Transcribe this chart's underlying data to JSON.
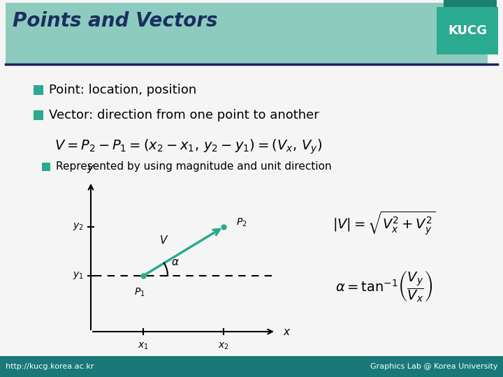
{
  "title": "Points and Vectors",
  "title_bg_color": "#8ECBBF",
  "title_text_color": "#1a3060",
  "kucg_back_color": "#1a8070",
  "kucg_front_color": "#2aaa90",
  "header_line_color": "#1a2060",
  "bg_color": "#f5f5f5",
  "footer_bg_color": "#1a7878",
  "footer_left": "http://kucg.korea.ac.kr",
  "footer_right": "Graphics Lab @ Korea University",
  "bullet_color": "#2aaa90",
  "arrow_color": "#2aaa90",
  "bullet1": "Point: location, position",
  "bullet2": "Vector: direction from one point to another",
  "sub_bullet": "Represented by using magnitude and unit direction"
}
